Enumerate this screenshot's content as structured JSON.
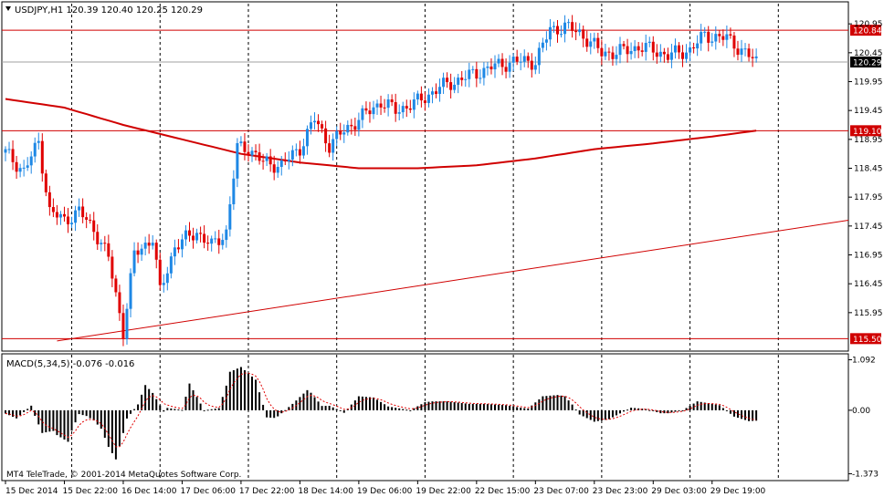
{
  "window": {
    "symbol_line": "USDJPY,H1  120.39 120.40 120.25 120.29",
    "collapse_icon": "triangle-down-icon",
    "macd_label": "MACD(5,34,5) -0.076 -0.016",
    "copyright": "MT4 TeleTrade, © 2001-2014 MetaQuotes Software Corp."
  },
  "colors": {
    "bull": "#1E88E5",
    "bear": "#E00000",
    "level_line": "#D00000",
    "ma": "#D00000",
    "grid": "#000000",
    "macd_hist": "#000000",
    "macd_signal": "#E00000",
    "background": "#FFFFFF"
  },
  "chart_data": [
    {
      "type": "candlestick",
      "symbol": "USDJPY",
      "timeframe": "H1",
      "ohlc_header": {
        "open": 120.39,
        "high": 120.4,
        "low": 120.25,
        "close": 120.29
      },
      "ylim": [
        115.3,
        121.3
      ],
      "y_ticks": [
        "120.95",
        "120.45",
        "119.95",
        "119.45",
        "118.95",
        "118.45",
        "117.95",
        "117.45",
        "116.95",
        "116.45",
        "115.95"
      ],
      "y_tick_values": [
        120.95,
        120.45,
        119.95,
        119.45,
        118.95,
        118.45,
        117.95,
        117.45,
        116.95,
        116.45,
        115.95
      ],
      "x_ticks": [
        "15 Dec 2014",
        "15 Dec 22:00",
        "16 Dec 14:00",
        "17 Dec 06:00",
        "17 Dec 22:00",
        "18 Dec 14:00",
        "19 Dec 06:00",
        "19 Dec 22:00",
        "22 Dec 15:00",
        "23 Dec 07:00",
        "23 Dec 23:00",
        "29 Dec 03:00",
        "29 Dec 19:00"
      ],
      "x_tick_bars": [
        0,
        16,
        32,
        48,
        64,
        80,
        96,
        112,
        128,
        144,
        160,
        176,
        192
      ],
      "vertical_grid_bars": [
        18,
        42,
        66,
        90,
        114,
        138,
        162,
        186,
        210
      ],
      "horizontal_levels": [
        {
          "price": 120.84,
          "label": "120.84"
        },
        {
          "price": 119.1,
          "label": "119.10"
        },
        {
          "price": 115.5,
          "label": "115.50"
        }
      ],
      "current_price": {
        "price": 120.29,
        "label": "120.29"
      },
      "trend_line": {
        "from": {
          "bar": 14,
          "price": 115.46
        },
        "to": {
          "bar": 233,
          "price": 117.55
        }
      },
      "ma_curve": [
        [
          0,
          119.65
        ],
        [
          16,
          119.5
        ],
        [
          32,
          119.2
        ],
        [
          48,
          118.95
        ],
        [
          64,
          118.7
        ],
        [
          80,
          118.55
        ],
        [
          96,
          118.45
        ],
        [
          112,
          118.45
        ],
        [
          128,
          118.5
        ],
        [
          144,
          118.62
        ],
        [
          160,
          118.78
        ],
        [
          176,
          118.88
        ],
        [
          192,
          119.0
        ],
        [
          204,
          119.1
        ]
      ],
      "price_path": [
        [
          0,
          118.72
        ],
        [
          5,
          118.4
        ],
        [
          9,
          118.9
        ],
        [
          12,
          117.7
        ],
        [
          16,
          117.55
        ],
        [
          20,
          117.7
        ],
        [
          24,
          117.4
        ],
        [
          28,
          116.9
        ],
        [
          32,
          115.62
        ],
        [
          35,
          116.95
        ],
        [
          40,
          117.25
        ],
        [
          42,
          116.3
        ],
        [
          46,
          117.1
        ],
        [
          52,
          117.35
        ],
        [
          56,
          117.1
        ],
        [
          60,
          117.35
        ],
        [
          63,
          118.8
        ],
        [
          66,
          118.8
        ],
        [
          70,
          118.55
        ],
        [
          75,
          118.5
        ],
        [
          80,
          118.8
        ],
        [
          84,
          119.3
        ],
        [
          88,
          118.85
        ],
        [
          92,
          119.1
        ],
        [
          96,
          119.3
        ],
        [
          102,
          119.6
        ],
        [
          106,
          119.45
        ],
        [
          112,
          119.6
        ],
        [
          118,
          119.85
        ],
        [
          124,
          120.0
        ],
        [
          132,
          120.2
        ],
        [
          138,
          120.3
        ],
        [
          144,
          120.3
        ],
        [
          148,
          120.85
        ],
        [
          152,
          120.9
        ],
        [
          156,
          120.8
        ],
        [
          162,
          120.45
        ],
        [
          166,
          120.45
        ],
        [
          172,
          120.55
        ],
        [
          176,
          120.5
        ],
        [
          180,
          120.4
        ],
        [
          186,
          120.5
        ],
        [
          190,
          120.75
        ],
        [
          196,
          120.7
        ],
        [
          200,
          120.5
        ],
        [
          204,
          120.29
        ]
      ]
    },
    {
      "type": "histogram",
      "name": "MACD(5,34,5)",
      "values_header": {
        "macd": -0.076,
        "signal": -0.016
      },
      "ylim": [
        -1.5,
        1.2
      ],
      "y_ticks": [
        "1.092",
        "0.00",
        "-1.373"
      ],
      "y_tick_values": [
        1.092,
        0.0,
        -1.373
      ]
    }
  ]
}
